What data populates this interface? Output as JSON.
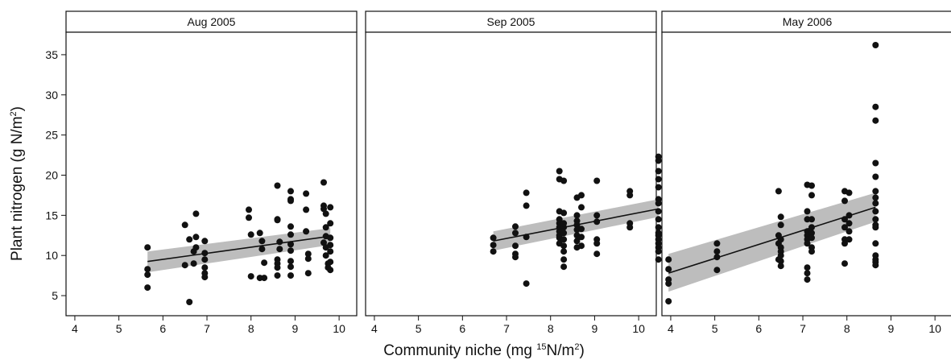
{
  "chart_data": {
    "type": "scatter",
    "ylabel_parts": [
      "Plant nitrogen (g N/m",
      "2",
      ")"
    ],
    "xlabel_parts": [
      "Community niche (mg ",
      "15",
      "N/m",
      "2",
      ")"
    ],
    "xlim": [
      3.8,
      10.4
    ],
    "ylim": [
      2.5,
      37.8
    ],
    "xticks": [
      4,
      5,
      6,
      7,
      8,
      9,
      10
    ],
    "yticks": [
      5,
      10,
      15,
      20,
      25,
      30,
      35
    ],
    "marker_color": "#111111",
    "line_color": "#111111",
    "band_color": "#bdbdbd",
    "panels": [
      {
        "title": "Aug 2005",
        "x": [
          5.65,
          5.65,
          5.65,
          5.65,
          6.5,
          6.5,
          6.6,
          6.6,
          6.7,
          6.7,
          6.75,
          6.75,
          6.75,
          6.95,
          6.95,
          6.95,
          6.95,
          6.95,
          6.95,
          7.95,
          7.95,
          8.0,
          8.0,
          8.2,
          8.2,
          8.25,
          8.25,
          8.3,
          8.3,
          8.6,
          8.6,
          8.6,
          8.6,
          8.6,
          8.6,
          8.6,
          8.65,
          8.65,
          8.9,
          8.9,
          8.9,
          8.9,
          8.9,
          8.9,
          8.9,
          8.9,
          8.9,
          8.9,
          9.25,
          9.25,
          9.25,
          9.3,
          9.3,
          9.3,
          9.65,
          9.65,
          9.65,
          9.65,
          9.7,
          9.7,
          9.7,
          9.7,
          9.7,
          9.75,
          9.75,
          9.8,
          9.8,
          9.8,
          9.8,
          9.8,
          9.8,
          9.8
        ],
        "y": [
          11.0,
          8.3,
          7.6,
          6.0,
          13.8,
          8.8,
          4.2,
          12.0,
          10.5,
          9.0,
          15.2,
          12.3,
          11.0,
          11.8,
          10.3,
          9.5,
          8.5,
          7.8,
          7.3,
          15.7,
          14.7,
          12.6,
          7.4,
          12.8,
          7.2,
          11.8,
          10.8,
          9.1,
          7.2,
          18.7,
          14.5,
          14.4,
          9.5,
          9.0,
          8.5,
          7.5,
          11.7,
          10.8,
          18.0,
          17.0,
          16.8,
          13.6,
          12.6,
          11.4,
          10.6,
          9.3,
          8.6,
          7.5,
          17.7,
          15.7,
          13.0,
          10.2,
          9.6,
          7.8,
          19.1,
          16.2,
          15.8,
          11.6,
          15.2,
          13.5,
          12.4,
          11.0,
          10.0,
          9.0,
          8.5,
          16.0,
          14.0,
          12.2,
          11.3,
          10.5,
          9.2,
          8.2
        ],
        "fit": [
          5.65,
          9.25,
          9.8,
          12.4
        ],
        "band": [
          [
            5.65,
            7.9,
            10.5
          ],
          [
            9.8,
            11.3,
            13.4
          ]
        ]
      },
      {
        "title": "Sep 2005",
        "x": [
          6.7,
          6.7,
          6.7,
          7.2,
          7.2,
          7.2,
          7.2,
          7.2,
          7.45,
          7.45,
          7.45,
          7.45,
          8.2,
          8.2,
          8.2,
          8.2,
          8.2,
          8.2,
          8.2,
          8.2,
          8.2,
          8.2,
          8.3,
          8.3,
          8.3,
          8.3,
          8.3,
          8.3,
          8.3,
          8.3,
          8.3,
          8.3,
          8.6,
          8.6,
          8.6,
          8.6,
          8.6,
          8.6,
          8.6,
          8.6,
          8.7,
          8.7,
          8.7,
          8.7,
          8.7,
          9.05,
          9.05,
          9.05,
          9.05,
          9.05,
          9.05,
          9.8,
          9.8,
          9.8,
          9.8,
          10.45,
          10.45,
          10.45,
          10.45,
          10.45,
          10.45,
          10.45,
          10.45,
          10.45,
          10.45,
          10.45,
          10.45,
          10.45,
          10.45,
          10.45,
          10.45,
          10.45
        ],
        "y": [
          12.2,
          11.3,
          10.5,
          13.6,
          12.8,
          11.2,
          10.2,
          9.8,
          17.8,
          16.2,
          12.3,
          6.5,
          20.5,
          19.5,
          15.5,
          14.5,
          14.0,
          13.5,
          13.0,
          12.5,
          12.2,
          11.5,
          19.3,
          15.3,
          14.0,
          13.5,
          12.8,
          12.0,
          11.2,
          10.5,
          9.5,
          8.6,
          17.2,
          15.0,
          14.3,
          13.8,
          13.2,
          12.5,
          11.8,
          11.0,
          17.5,
          16.0,
          13.3,
          12.3,
          11.2,
          19.3,
          15.0,
          14.2,
          12.0,
          11.5,
          10.2,
          18.0,
          17.5,
          14.0,
          13.5,
          22.3,
          21.8,
          20.5,
          19.5,
          18.5,
          17.0,
          16.5,
          15.5,
          14.5,
          13.5,
          12.8,
          12.5,
          12.0,
          11.5,
          11.0,
          10.5,
          9.5
        ],
        "fit": [
          6.7,
          11.8,
          10.45,
          15.8
        ],
        "band": [
          [
            6.7,
            10.6,
            13.0
          ],
          [
            10.45,
            14.8,
            17.0
          ]
        ]
      },
      {
        "title": "May 2006",
        "x": [
          3.95,
          3.95,
          3.95,
          3.95,
          3.95,
          5.05,
          5.05,
          5.05,
          5.05,
          6.45,
          6.45,
          6.45,
          6.45,
          6.5,
          6.5,
          6.5,
          6.5,
          6.5,
          6.5,
          6.5,
          6.5,
          7.1,
          7.1,
          7.1,
          7.1,
          7.1,
          7.1,
          7.1,
          7.1,
          7.1,
          7.1,
          7.2,
          7.2,
          7.2,
          7.2,
          7.2,
          7.2,
          7.2,
          7.2,
          7.95,
          7.95,
          7.95,
          7.95,
          7.95,
          7.95,
          7.95,
          8.05,
          8.05,
          8.05,
          8.05,
          8.05,
          8.65,
          8.65,
          8.65,
          8.65,
          8.65,
          8.65,
          8.65,
          8.65,
          8.65,
          8.65,
          8.65,
          8.65,
          8.65,
          8.65,
          8.65,
          8.65,
          8.65
        ],
        "y": [
          9.5,
          8.3,
          7.0,
          6.5,
          4.3,
          11.5,
          10.5,
          9.8,
          8.2,
          18.0,
          12.5,
          11.5,
          9.5,
          14.8,
          13.8,
          12.0,
          11.0,
          10.5,
          10.0,
          9.3,
          8.7,
          18.8,
          15.5,
          14.5,
          13.0,
          12.5,
          12.0,
          11.5,
          8.5,
          7.8,
          7.0,
          18.7,
          17.5,
          14.5,
          13.5,
          12.8,
          12.2,
          11.0,
          10.5,
          18.0,
          16.8,
          14.5,
          13.5,
          12.0,
          11.5,
          9.0,
          17.8,
          15.0,
          14.0,
          13.0,
          12.0,
          36.2,
          28.5,
          26.8,
          21.5,
          19.8,
          18.0,
          17.2,
          16.5,
          15.5,
          14.5,
          13.8,
          13.5,
          11.5,
          10.0,
          9.5,
          9.2,
          8.8
        ],
        "fit": [
          3.95,
          7.8,
          8.65,
          16.0
        ],
        "band": [
          [
            3.95,
            5.5,
            10.2
          ],
          [
            8.65,
            14.2,
            17.8
          ]
        ]
      }
    ]
  }
}
